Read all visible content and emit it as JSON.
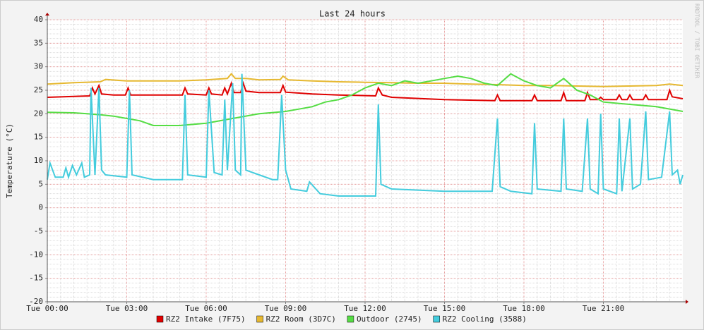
{
  "chart_data": {
    "type": "line",
    "title": "Last 24 hours",
    "y_label": "Temperature (°C)",
    "watermark": "RRDTOOL / TOBI OETIKER",
    "xlim": [
      0,
      24
    ],
    "xticks": [
      {
        "value": 0,
        "label": "Tue 00:00"
      },
      {
        "value": 3,
        "label": "Tue 03:00"
      },
      {
        "value": 6,
        "label": "Tue 06:00"
      },
      {
        "value": 9,
        "label": "Tue 09:00"
      },
      {
        "value": 12,
        "label": "Tue 12:00"
      },
      {
        "value": 15,
        "label": "Tue 15:00"
      },
      {
        "value": 18,
        "label": "Tue 18:00"
      },
      {
        "value": 21,
        "label": "Tue 21:00"
      }
    ],
    "ylim": [
      -20,
      40
    ],
    "yticks": [
      -20,
      -15,
      -10,
      -5,
      0,
      5,
      10,
      15,
      20,
      25,
      30,
      35,
      40
    ],
    "grid": true,
    "series": [
      {
        "name": "RZ2 Intake (7F75)",
        "color": "#e00000",
        "x": [
          0,
          1.6,
          1.7,
          1.8,
          1.95,
          2.05,
          2.5,
          2.95,
          3.05,
          3.15,
          4,
          5.1,
          5.2,
          5.3,
          6.0,
          6.1,
          6.2,
          6.6,
          6.7,
          6.8,
          6.95,
          7.05,
          7.15,
          7.3,
          7.4,
          7.5,
          8,
          8.8,
          8.9,
          9.0,
          10,
          11,
          12.4,
          12.5,
          12.65,
          13,
          15,
          16.9,
          17.0,
          17.1,
          18.3,
          18.4,
          18.5,
          19.4,
          19.5,
          19.6,
          20.3,
          20.4,
          20.5,
          20.8,
          20.9,
          21.0,
          21.5,
          21.6,
          21.7,
          21.9,
          22.0,
          22.1,
          22.5,
          22.6,
          22.7,
          23.4,
          23.5,
          23.6,
          24
        ],
        "values": [
          23.5,
          23.8,
          25.5,
          24.2,
          26,
          24.2,
          24,
          24,
          25.5,
          24,
          24,
          24,
          25.5,
          24.2,
          24,
          25.5,
          24.2,
          24,
          25.5,
          24.2,
          26.5,
          24.5,
          24.5,
          24.5,
          26.5,
          24.8,
          24.5,
          24.5,
          26,
          24.6,
          24.2,
          24,
          23.8,
          25.5,
          24,
          23.5,
          23,
          22.8,
          24,
          22.8,
          22.8,
          24,
          22.8,
          22.8,
          24.5,
          22.8,
          22.8,
          24.5,
          23,
          23,
          23.5,
          23,
          23,
          24,
          23,
          23,
          24,
          23,
          23,
          24,
          23,
          23,
          25,
          23.6,
          23.2
        ]
      },
      {
        "name": "RZ2 Room (3D7C)",
        "color": "#e6b830",
        "x": [
          0,
          1,
          2,
          2.2,
          3,
          4,
          5,
          6,
          6.8,
          6.95,
          7.1,
          7.5,
          8,
          8.8,
          8.9,
          9.1,
          10,
          11,
          12,
          13,
          14,
          15,
          16,
          17,
          18,
          19,
          20,
          21,
          22,
          23,
          23.5,
          24
        ],
        "values": [
          26.3,
          26.6,
          26.8,
          27.3,
          27,
          27,
          27,
          27.2,
          27.5,
          28.5,
          27.5,
          27.5,
          27.2,
          27.3,
          28,
          27.2,
          27,
          26.8,
          26.7,
          26.6,
          26.5,
          26.5,
          26.3,
          26.2,
          26,
          26,
          25.9,
          25.8,
          25.9,
          26,
          26.3,
          26
        ]
      },
      {
        "name": "Outdoor (2745)",
        "color": "#55dd44",
        "x": [
          0,
          1,
          1.5,
          2,
          2.5,
          3,
          3.5,
          4,
          5,
          6,
          7,
          8,
          9,
          9.5,
          10,
          10.5,
          11,
          11.5,
          12,
          12.5,
          13,
          13.5,
          14,
          14.5,
          15,
          15.5,
          16,
          16.5,
          17,
          17.5,
          18,
          18.5,
          19,
          19.5,
          20,
          20.5,
          21,
          22,
          23,
          24
        ],
        "values": [
          20.3,
          20.2,
          20,
          19.8,
          19.5,
          19,
          18.5,
          17.5,
          17.5,
          18,
          19,
          20,
          20.5,
          21,
          21.5,
          22.5,
          23,
          24,
          25.5,
          26.5,
          26,
          27,
          26.5,
          27,
          27.5,
          28,
          27.5,
          26.5,
          26,
          28.5,
          27,
          26,
          25.5,
          27.5,
          25,
          24,
          22.5,
          22,
          21.5,
          20.5
        ]
      },
      {
        "name": "RZ2 Cooling (3588)",
        "color": "#44ccdd",
        "x": [
          0,
          0.1,
          0.3,
          0.6,
          0.7,
          0.8,
          0.95,
          1.1,
          1.3,
          1.4,
          1.6,
          1.65,
          1.8,
          1.95,
          2.05,
          2.2,
          3.0,
          3.1,
          3.2,
          4,
          5.1,
          5.2,
          5.3,
          6.0,
          6.1,
          6.3,
          6.6,
          6.7,
          6.8,
          7.0,
          7.1,
          7.3,
          7.35,
          7.5,
          8.0,
          8.5,
          8.7,
          8.85,
          9.0,
          9.2,
          9.8,
          9.9,
          10.3,
          11,
          12.4,
          12.5,
          12.6,
          13,
          15,
          16.8,
          17.0,
          17.1,
          17.5,
          18.3,
          18.4,
          18.5,
          19.4,
          19.5,
          19.6,
          20.2,
          20.4,
          20.5,
          20.8,
          20.9,
          21.0,
          21.5,
          21.6,
          21.7,
          22.0,
          22.1,
          22.4,
          22.6,
          22.7,
          23.2,
          23.5,
          23.6,
          23.8,
          23.9,
          24
        ],
        "values": [
          6,
          9.5,
          6.5,
          6.5,
          8.5,
          6.5,
          9,
          7,
          9.5,
          6.5,
          7,
          25.5,
          7,
          25.5,
          8,
          7,
          6.5,
          25,
          7,
          6,
          6,
          24,
          7,
          6.5,
          25,
          7.5,
          7,
          23,
          8,
          26.5,
          8,
          7,
          28.5,
          8,
          7,
          6,
          6,
          24,
          8,
          4,
          3.5,
          5.5,
          3,
          2.5,
          2.5,
          22,
          5,
          4,
          3.5,
          3.5,
          19,
          4.5,
          3.5,
          3,
          18,
          4,
          3.5,
          19,
          4,
          3.5,
          19,
          4,
          3,
          20,
          4,
          3,
          19,
          3.5,
          19,
          4,
          5,
          20.5,
          6,
          6.5,
          20.5,
          7,
          8,
          5,
          7
        ]
      }
    ]
  }
}
